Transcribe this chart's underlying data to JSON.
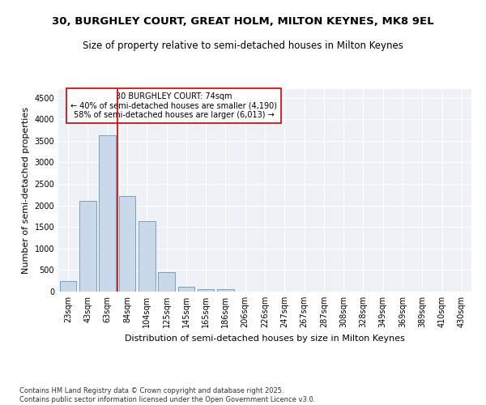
{
  "title1": "30, BURGHLEY COURT, GREAT HOLM, MILTON KEYNES, MK8 9EL",
  "title2": "Size of property relative to semi-detached houses in Milton Keynes",
  "xlabel": "Distribution of semi-detached houses by size in Milton Keynes",
  "ylabel": "Number of semi-detached properties",
  "categories": [
    "23sqm",
    "43sqm",
    "63sqm",
    "84sqm",
    "104sqm",
    "125sqm",
    "145sqm",
    "165sqm",
    "186sqm",
    "206sqm",
    "226sqm",
    "247sqm",
    "267sqm",
    "287sqm",
    "308sqm",
    "328sqm",
    "349sqm",
    "369sqm",
    "389sqm",
    "410sqm",
    "430sqm"
  ],
  "values": [
    250,
    2100,
    3630,
    2220,
    1640,
    450,
    105,
    60,
    50,
    0,
    0,
    0,
    0,
    0,
    0,
    0,
    0,
    0,
    0,
    0,
    0
  ],
  "bar_color": "#c9d9e9",
  "bar_edge_color": "#6699bb",
  "vline_pos": 2.5,
  "vline_color": "#cc0000",
  "annotation_title": "30 BURGHLEY COURT: 74sqm",
  "annotation_line1": "← 40% of semi-detached houses are smaller (4,190)",
  "annotation_line2": "58% of semi-detached houses are larger (6,013) →",
  "annotation_box_color": "#cc0000",
  "ylim": [
    0,
    4700
  ],
  "yticks": [
    0,
    500,
    1000,
    1500,
    2000,
    2500,
    3000,
    3500,
    4000,
    4500
  ],
  "background_color": "#eef2f7",
  "footer": "Contains HM Land Registry data © Crown copyright and database right 2025.\nContains public sector information licensed under the Open Government Licence v3.0.",
  "title_fontsize": 9.5,
  "subtitle_fontsize": 8.5,
  "ylabel_fontsize": 8,
  "xlabel_fontsize": 8,
  "tick_fontsize": 7,
  "annotation_fontsize": 7,
  "footer_fontsize": 6
}
